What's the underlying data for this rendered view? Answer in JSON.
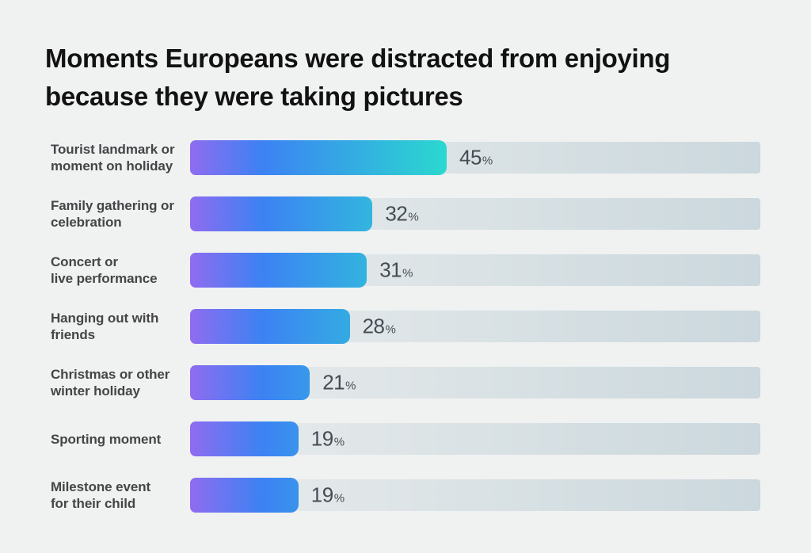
{
  "title": {
    "line1": "Moments Europeans were distracted from enjoying",
    "line2": "because they were taking pictures"
  },
  "chart_data": {
    "type": "bar",
    "orientation": "horizontal",
    "title": "Moments Europeans were distracted from enjoying because they were taking pictures",
    "unit": "%",
    "xlim": [
      0,
      100
    ],
    "grid": false,
    "legend": false,
    "value_labels": "outside-right-of-bar",
    "gradient_span_value": 45,
    "categories": [
      "Tourist landmark or\nmoment on holiday",
      "Family gathering or\ncelebration",
      "Concert or\nlive performance",
      "Hanging out with\nfriends",
      "Christmas or other\nwinter holiday",
      "Sporting moment",
      "Milestone event\nfor their child"
    ],
    "values": [
      45,
      32,
      31,
      28,
      21,
      19,
      19
    ],
    "colors": {
      "background": "#F0F1F1",
      "title_text": "#121212",
      "label_text": "#454548",
      "value_text": "#454C54",
      "bar_gradient": [
        "#8F6CF0",
        "#3C82F3",
        "#2BD8D0"
      ],
      "track_gradient": [
        "#E9ECED",
        "#CBD8DD"
      ]
    }
  }
}
